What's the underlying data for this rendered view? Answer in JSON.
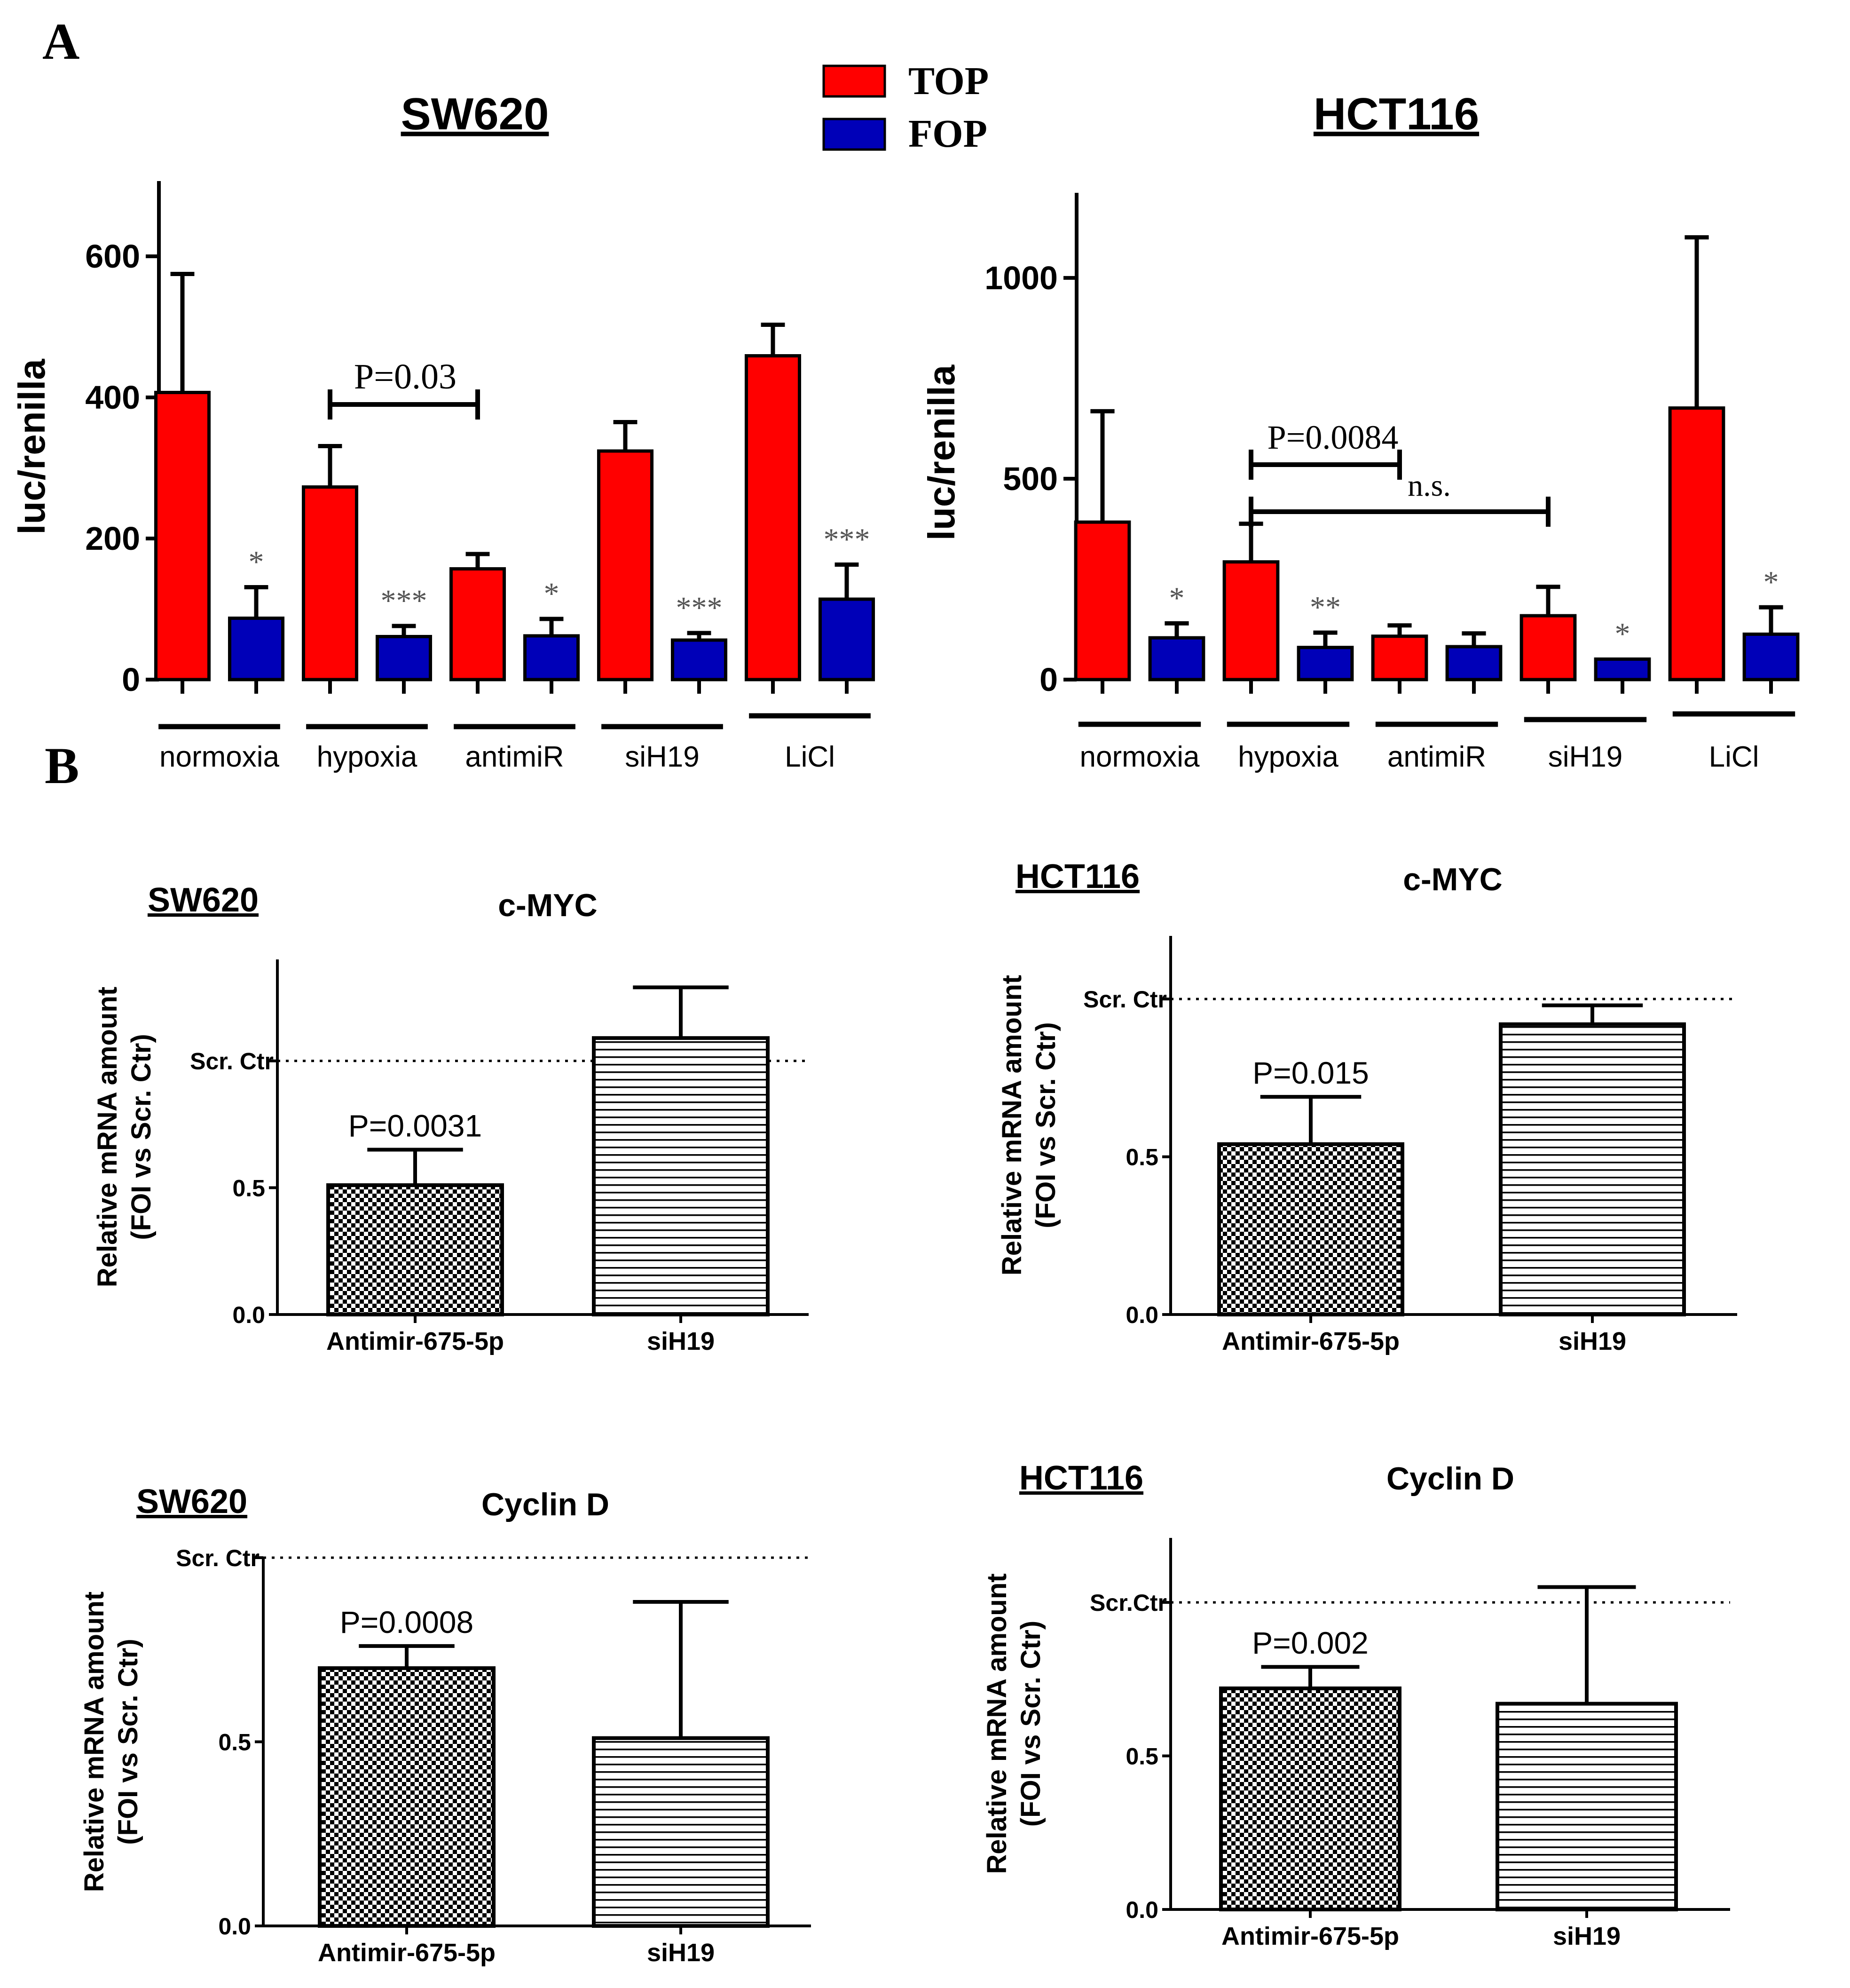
{
  "panel_labels": {
    "a": "A",
    "b": "B"
  },
  "legend": {
    "items": [
      {
        "label": "TOP",
        "color": "#FF0000"
      },
      {
        "label": "FOP",
        "color": "#0000B8"
      }
    ]
  },
  "colors": {
    "top": "#FF0000",
    "fop": "#0000B8",
    "axis": "#000000",
    "star": "#555555"
  },
  "chart_data": [
    {
      "id": "a1",
      "type": "bar",
      "title": "SW620",
      "ylabel": "luc/renilla",
      "ylim": [
        0,
        700
      ],
      "yticks": [
        0,
        200,
        400,
        600
      ],
      "categories": [
        "normoxia",
        "hypoxia",
        "antimiR",
        "siH19",
        "LiCl"
      ],
      "series": [
        {
          "name": "TOP",
          "values": [
            407,
            273,
            157,
            324,
            459
          ],
          "errors": [
            168,
            58,
            21,
            41,
            44
          ]
        },
        {
          "name": "FOP",
          "values": [
            87,
            61,
            62,
            56,
            114
          ],
          "errors": [
            44,
            15,
            24,
            10,
            49
          ]
        }
      ],
      "stars": [
        "*",
        "***",
        "*",
        "***",
        "***"
      ],
      "annotations": [
        {
          "text": "P=0.03",
          "from": "hypoxia",
          "to": "antimiR"
        }
      ]
    },
    {
      "id": "a2",
      "type": "bar",
      "title": "HCT116",
      "ylabel": "luc/renilla",
      "ylim": [
        0,
        1200
      ],
      "yticks": [
        0,
        500,
        1000
      ],
      "categories": [
        "normoxia",
        "hypoxia",
        "antimiR",
        "siH19",
        "LiCl"
      ],
      "series": [
        {
          "name": "TOP",
          "values": [
            392,
            293,
            108,
            159,
            676
          ],
          "errors": [
            276,
            95,
            27,
            72,
            425
          ]
        },
        {
          "name": "FOP",
          "values": [
            104,
            80,
            82,
            51,
            113
          ],
          "errors": [
            36,
            37,
            33,
            0,
            67
          ]
        }
      ],
      "stars": [
        "*",
        "**",
        "",
        "*",
        "*"
      ],
      "annotations": [
        {
          "text": "P=0.0084",
          "from": "hypoxia",
          "to": "antimiR"
        },
        {
          "text": "n.s.",
          "from": "hypoxia",
          "to": "siH19"
        }
      ]
    },
    {
      "id": "b1",
      "type": "bar",
      "cell_line": "SW620",
      "title": "c-MYC",
      "ylabel_lines": [
        "Relative mRNA amount",
        "(FOI vs Scr. Ctr)"
      ],
      "ylim": [
        0,
        1.4
      ],
      "yticks": [
        "0.0",
        "0.5"
      ],
      "reference": {
        "label": "Scr. Ctr",
        "value": 1.0
      },
      "categories": [
        "Antimir-675-5p",
        "siH19"
      ],
      "values": [
        0.51,
        1.09
      ],
      "errors": [
        0.14,
        0.2
      ],
      "pvalue": "P=0.0031"
    },
    {
      "id": "b2",
      "type": "bar",
      "cell_line": "HCT116",
      "title": "c-MYC",
      "ylabel_lines": [
        "Relative mRNA amount",
        "(FOI vs Scr. Ctr)"
      ],
      "ylim": [
        0,
        1.2
      ],
      "yticks": [
        "0.0",
        "0.5"
      ],
      "reference": {
        "label": "Scr. Ctr",
        "value": 1.0
      },
      "categories": [
        "Antimir-675-5p",
        "siH19"
      ],
      "values": [
        0.54,
        0.92
      ],
      "errors": [
        0.15,
        0.06
      ],
      "pvalue": "P=0.015"
    },
    {
      "id": "b3",
      "type": "bar",
      "cell_line": "SW620",
      "title": "Cyclin D",
      "ylabel_lines": [
        "Relative mRNA amount",
        "(FOI vs Scr. Ctr)"
      ],
      "ylim": [
        0,
        1.0
      ],
      "yticks": [
        "0.0",
        "0.5"
      ],
      "reference": {
        "label": "Scr. Ctr",
        "value": 1.0
      },
      "categories": [
        "Antimir-675-5p",
        "siH19"
      ],
      "values": [
        0.7,
        0.51
      ],
      "errors": [
        0.06,
        0.37
      ],
      "pvalue": "P=0.0008"
    },
    {
      "id": "b4",
      "type": "bar",
      "cell_line": "HCT116",
      "title": "Cyclin D",
      "ylabel_lines": [
        "Relative mRNA amount",
        "(FOI vs Scr. Ctr)"
      ],
      "ylim": [
        0,
        1.21
      ],
      "yticks": [
        "0.0",
        "0.5"
      ],
      "reference": {
        "label": "Scr.Ctr",
        "value": 1.0
      },
      "categories": [
        "Antimir-675-5p",
        "siH19"
      ],
      "values": [
        0.72,
        0.67
      ],
      "errors": [
        0.07,
        0.38
      ],
      "pvalue": "P=0.002"
    }
  ]
}
